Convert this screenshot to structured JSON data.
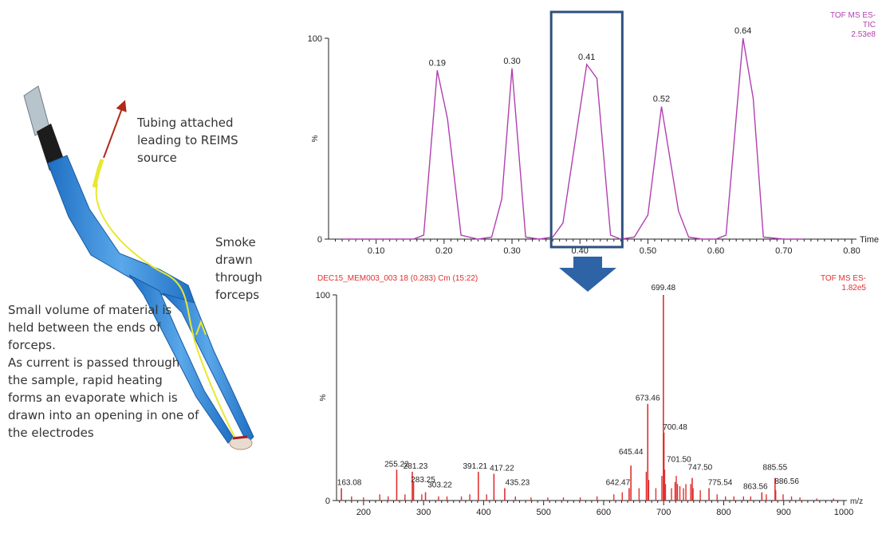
{
  "annotations": {
    "tubing": "Tubing attached leading to REIMS source",
    "smoke": "Smoke drawn through forceps",
    "material": "Small volume of material is held between the ends of forceps.\nAs current is passed through the sample, rapid heating forms an evaporate which is drawn into an opening in one of the electrodes"
  },
  "colors": {
    "tic": "#b040b0",
    "ms": "#e03030",
    "box": "#2f4f7f",
    "arrow": "#2e63a6",
    "forceps": "#2d7fd0",
    "wire": "#e8e830"
  },
  "chart_data": [
    {
      "type": "line",
      "header_right": [
        "TOF MS ES-",
        "TIC",
        "2.53e8"
      ],
      "xlabel": "Time",
      "ylabel": "%",
      "xlim": [
        0.03,
        0.8
      ],
      "ylim": [
        0,
        100
      ],
      "x_ticks": [
        "0.10",
        "0.20",
        "0.30",
        "0.40",
        "0.50",
        "0.60",
        "0.70",
        "0.80"
      ],
      "y_ticks": [
        "0",
        "100"
      ],
      "peak_labels": [
        {
          "x": 0.19,
          "y": 84,
          "label": "0.19"
        },
        {
          "x": 0.3,
          "y": 85,
          "label": "0.30"
        },
        {
          "x": 0.41,
          "y": 87,
          "label": "0.41"
        },
        {
          "x": 0.52,
          "y": 66,
          "label": "0.52"
        },
        {
          "x": 0.64,
          "y": 100,
          "label": "0.64"
        }
      ],
      "x": [
        0.05,
        0.1,
        0.155,
        0.17,
        0.19,
        0.205,
        0.225,
        0.25,
        0.27,
        0.285,
        0.3,
        0.32,
        0.34,
        0.36,
        0.375,
        0.41,
        0.425,
        0.445,
        0.46,
        0.48,
        0.5,
        0.52,
        0.545,
        0.56,
        0.58,
        0.6,
        0.615,
        0.64,
        0.655,
        0.67,
        0.7,
        0.73
      ],
      "y": [
        0,
        0,
        0,
        2,
        84,
        60,
        2,
        0,
        1,
        20,
        85,
        1,
        0,
        1,
        8,
        87,
        80,
        2,
        0,
        1,
        12,
        66,
        14,
        1,
        0,
        0,
        2,
        100,
        70,
        1,
        0,
        0
      ],
      "highlight_range": [
        0.36,
        0.46
      ]
    },
    {
      "type": "bar",
      "header_left": "DEC15_MEM003_003 18 (0.283) Cm (15:22)",
      "header_right": [
        "TOF MS ES-",
        "1.82e5"
      ],
      "xlabel": "m/z",
      "ylabel": "%",
      "xlim": [
        155,
        1000
      ],
      "ylim": [
        0,
        100
      ],
      "x_ticks": [
        "200",
        "300",
        "400",
        "500",
        "600",
        "700",
        "800",
        "900",
        "1000"
      ],
      "y_ticks": [
        "0",
        "100"
      ],
      "labeled_peaks": [
        {
          "mz": 163.08,
          "i": 6,
          "label": "163.08"
        },
        {
          "mz": 255.22,
          "i": 15,
          "label": "255.22"
        },
        {
          "mz": 281.23,
          "i": 14,
          "label": "281.23"
        },
        {
          "mz": 283.25,
          "i": 9,
          "label": "283.25"
        },
        {
          "mz": 303.22,
          "i": 4,
          "label": "303.22"
        },
        {
          "mz": 391.21,
          "i": 14,
          "label": "391.21"
        },
        {
          "mz": 417.22,
          "i": 13,
          "label": "417.22"
        },
        {
          "mz": 435.23,
          "i": 6,
          "label": "435.23"
        },
        {
          "mz": 642.47,
          "i": 6,
          "label": "642.47"
        },
        {
          "mz": 645.44,
          "i": 17,
          "label": "645.44"
        },
        {
          "mz": 673.46,
          "i": 47,
          "label": "673.46"
        },
        {
          "mz": 699.48,
          "i": 100,
          "label": "699.48"
        },
        {
          "mz": 700.48,
          "i": 33,
          "label": "700.48"
        },
        {
          "mz": 701.5,
          "i": 15,
          "label": "701.50"
        },
        {
          "mz": 747.5,
          "i": 11,
          "label": "747.50"
        },
        {
          "mz": 775.54,
          "i": 6,
          "label": "775.54"
        },
        {
          "mz": 863.56,
          "i": 4,
          "label": "863.56"
        },
        {
          "mz": 885.55,
          "i": 11,
          "label": "885.55"
        },
        {
          "mz": 886.56,
          "i": 5,
          "label": "886.56"
        }
      ],
      "minor_peaks": [
        {
          "mz": 180,
          "i": 2
        },
        {
          "mz": 200,
          "i": 1.5
        },
        {
          "mz": 227,
          "i": 3
        },
        {
          "mz": 241,
          "i": 2
        },
        {
          "mz": 269,
          "i": 3
        },
        {
          "mz": 297,
          "i": 3
        },
        {
          "mz": 325,
          "i": 2
        },
        {
          "mz": 339,
          "i": 2
        },
        {
          "mz": 363,
          "i": 2
        },
        {
          "mz": 377,
          "i": 3
        },
        {
          "mz": 405,
          "i": 3
        },
        {
          "mz": 453,
          "i": 2
        },
        {
          "mz": 479,
          "i": 1.5
        },
        {
          "mz": 507,
          "i": 1.5
        },
        {
          "mz": 533,
          "i": 1.5
        },
        {
          "mz": 561,
          "i": 1.5
        },
        {
          "mz": 589,
          "i": 2
        },
        {
          "mz": 617,
          "i": 3
        },
        {
          "mz": 631,
          "i": 4
        },
        {
          "mz": 659,
          "i": 6
        },
        {
          "mz": 671,
          "i": 14
        },
        {
          "mz": 675,
          "i": 10
        },
        {
          "mz": 687,
          "i": 6
        },
        {
          "mz": 697,
          "i": 12
        },
        {
          "mz": 703,
          "i": 8
        },
        {
          "mz": 713,
          "i": 6
        },
        {
          "mz": 719,
          "i": 9
        },
        {
          "mz": 721,
          "i": 12
        },
        {
          "mz": 723,
          "i": 8
        },
        {
          "mz": 727,
          "i": 7
        },
        {
          "mz": 733,
          "i": 6
        },
        {
          "mz": 737,
          "i": 8
        },
        {
          "mz": 745,
          "i": 8
        },
        {
          "mz": 749,
          "i": 6
        },
        {
          "mz": 761,
          "i": 5
        },
        {
          "mz": 789,
          "i": 3
        },
        {
          "mz": 803,
          "i": 2
        },
        {
          "mz": 817,
          "i": 2
        },
        {
          "mz": 833,
          "i": 2
        },
        {
          "mz": 845,
          "i": 2
        },
        {
          "mz": 871,
          "i": 3
        },
        {
          "mz": 899,
          "i": 3
        },
        {
          "mz": 913,
          "i": 2
        },
        {
          "mz": 927,
          "i": 1.5
        },
        {
          "mz": 955,
          "i": 1
        },
        {
          "mz": 983,
          "i": 1
        }
      ]
    }
  ]
}
